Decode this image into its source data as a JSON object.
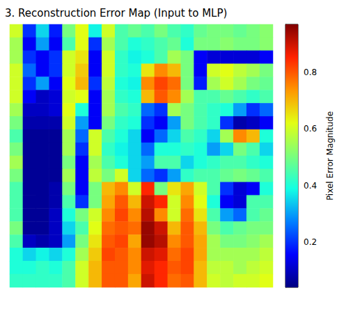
{
  "chart_data": {
    "type": "heatmap",
    "title": "3. Reconstruction Error Map (Input to MLP)",
    "colorbar_label": "Pixel Error Magnitude",
    "zlim": [
      0.04,
      0.97
    ],
    "zticks": [
      0.2,
      0.4,
      0.6,
      0.8
    ],
    "tick_labels": false,
    "cells": [
      [
        0.6,
        0.2,
        0.35,
        0.18,
        0.5,
        0.62,
        0.38,
        0.6,
        0.45,
        0.48,
        0.45,
        0.5,
        0.45,
        0.42,
        0.48,
        0.5,
        0.5,
        0.48,
        0.5,
        0.52
      ],
      [
        0.55,
        0.15,
        0.3,
        0.15,
        0.45,
        0.62,
        0.2,
        0.55,
        0.45,
        0.4,
        0.42,
        0.45,
        0.48,
        0.4,
        0.5,
        0.5,
        0.52,
        0.5,
        0.5,
        0.52
      ],
      [
        0.55,
        0.2,
        0.15,
        0.2,
        0.6,
        0.65,
        0.15,
        0.6,
        0.42,
        0.38,
        0.4,
        0.45,
        0.55,
        0.5,
        0.15,
        0.12,
        0.12,
        0.12,
        0.12,
        0.15
      ],
      [
        0.6,
        0.25,
        0.15,
        0.2,
        0.6,
        0.68,
        0.15,
        0.6,
        0.42,
        0.4,
        0.65,
        0.75,
        0.7,
        0.5,
        0.15,
        0.6,
        0.62,
        0.58,
        0.55,
        0.5
      ],
      [
        0.6,
        0.2,
        0.3,
        0.15,
        0.62,
        0.7,
        0.2,
        0.58,
        0.4,
        0.38,
        0.75,
        0.82,
        0.78,
        0.5,
        0.18,
        0.55,
        0.6,
        0.55,
        0.5,
        0.48
      ],
      [
        0.6,
        0.15,
        0.1,
        0.12,
        0.6,
        0.62,
        0.15,
        0.55,
        0.42,
        0.4,
        0.7,
        0.8,
        0.75,
        0.55,
        0.45,
        0.45,
        0.48,
        0.45,
        0.42,
        0.45
      ],
      [
        0.55,
        0.1,
        0.1,
        0.12,
        0.62,
        0.4,
        0.15,
        0.55,
        0.45,
        0.42,
        0.25,
        0.2,
        0.55,
        0.5,
        0.45,
        0.42,
        0.4,
        0.3,
        0.2,
        0.25
      ],
      [
        0.5,
        0.08,
        0.08,
        0.08,
        0.6,
        0.3,
        0.15,
        0.5,
        0.42,
        0.4,
        0.2,
        0.15,
        0.3,
        0.5,
        0.45,
        0.42,
        0.2,
        0.08,
        0.1,
        0.15
      ],
      [
        0.45,
        0.06,
        0.06,
        0.06,
        0.55,
        0.25,
        0.6,
        0.45,
        0.4,
        0.35,
        0.15,
        0.25,
        0.35,
        0.45,
        0.42,
        0.35,
        0.55,
        0.75,
        0.7,
        0.4
      ],
      [
        0.5,
        0.06,
        0.06,
        0.06,
        0.55,
        0.2,
        0.6,
        0.42,
        0.38,
        0.35,
        0.25,
        0.4,
        0.4,
        0.42,
        0.4,
        0.3,
        0.35,
        0.5,
        0.45,
        0.35
      ],
      [
        0.55,
        0.06,
        0.06,
        0.06,
        0.5,
        0.15,
        0.55,
        0.45,
        0.4,
        0.35,
        0.3,
        0.45,
        0.45,
        0.35,
        0.4,
        0.42,
        0.45,
        0.45,
        0.42,
        0.4
      ],
      [
        0.5,
        0.06,
        0.06,
        0.06,
        0.55,
        0.15,
        0.58,
        0.5,
        0.6,
        0.35,
        0.25,
        0.2,
        0.3,
        0.42,
        0.45,
        0.45,
        0.48,
        0.5,
        0.48,
        0.45
      ],
      [
        0.45,
        0.06,
        0.06,
        0.08,
        0.5,
        0.15,
        0.5,
        0.7,
        0.75,
        0.6,
        0.85,
        0.5,
        0.65,
        0.72,
        0.6,
        0.45,
        0.2,
        0.12,
        0.15,
        0.4
      ],
      [
        0.45,
        0.06,
        0.06,
        0.08,
        0.45,
        0.2,
        0.5,
        0.72,
        0.8,
        0.7,
        0.9,
        0.85,
        0.6,
        0.75,
        0.62,
        0.4,
        0.15,
        0.12,
        0.45,
        0.45
      ],
      [
        0.45,
        0.06,
        0.06,
        0.1,
        0.4,
        0.5,
        0.6,
        0.75,
        0.82,
        0.75,
        0.92,
        0.75,
        0.6,
        0.78,
        0.65,
        0.45,
        0.3,
        0.25,
        0.45,
        0.48
      ],
      [
        0.5,
        0.06,
        0.06,
        0.1,
        0.35,
        0.45,
        0.62,
        0.78,
        0.8,
        0.78,
        0.95,
        0.9,
        0.7,
        0.8,
        0.7,
        0.5,
        0.45,
        0.48,
        0.5,
        0.5
      ],
      [
        0.45,
        0.1,
        0.08,
        0.1,
        0.3,
        0.5,
        0.65,
        0.8,
        0.82,
        0.72,
        0.95,
        0.92,
        0.75,
        0.8,
        0.72,
        0.55,
        0.5,
        0.5,
        0.52,
        0.55
      ],
      [
        0.4,
        0.35,
        0.38,
        0.35,
        0.4,
        0.55,
        0.68,
        0.82,
        0.8,
        0.75,
        0.9,
        0.88,
        0.78,
        0.82,
        0.72,
        0.55,
        0.55,
        0.55,
        0.55,
        0.58
      ],
      [
        0.4,
        0.4,
        0.42,
        0.4,
        0.45,
        0.6,
        0.7,
        0.8,
        0.8,
        0.75,
        0.88,
        0.85,
        0.8,
        0.82,
        0.7,
        0.58,
        0.58,
        0.55,
        0.58,
        0.6
      ],
      [
        0.42,
        0.42,
        0.42,
        0.42,
        0.45,
        0.6,
        0.7,
        0.8,
        0.8,
        0.72,
        0.9,
        0.85,
        0.78,
        0.8,
        0.7,
        0.6,
        0.58,
        0.6,
        0.6,
        0.62
      ]
    ]
  }
}
